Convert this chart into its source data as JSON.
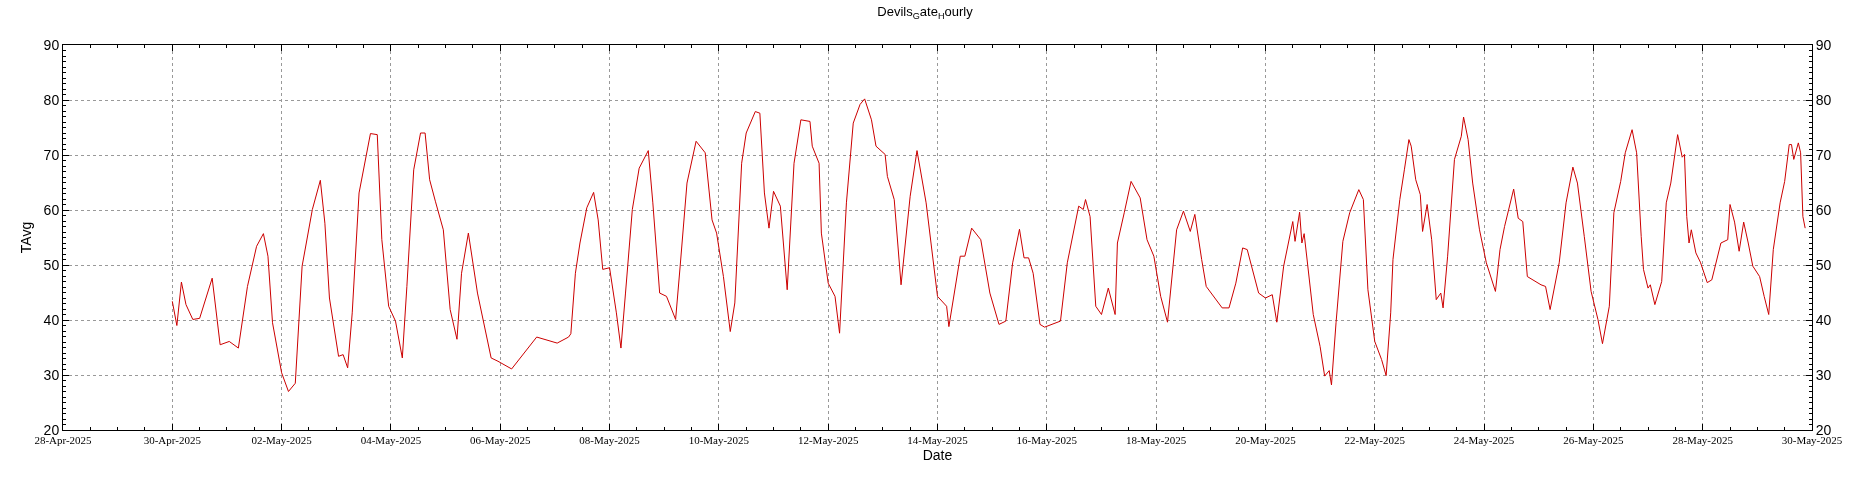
{
  "chart_data": {
    "type": "line",
    "title": "Devils$_{G}$ate$_{H}$ourly",
    "xlabel": "Date",
    "ylabel": "TAvg",
    "x": [
      "2025-04-30T00:00",
      "2025-04-30T02:00",
      "2025-04-30T04:00",
      "2025-04-30T06:00",
      "2025-04-30T09:00",
      "2025-04-30T12:00",
      "2025-04-30T17:30",
      "2025-04-30T21:00",
      "2025-05-01T01:00",
      "2025-05-01T05:00",
      "2025-05-01T09:00",
      "2025-05-01T13:00",
      "2025-05-01T16:00",
      "2025-05-01T18:00",
      "2025-05-01T20:00",
      "2025-05-02T00:00",
      "2025-05-02T03:00",
      "2025-05-02T06:00",
      "2025-05-02T09:00",
      "2025-05-02T13:30",
      "2025-05-02T17:00",
      "2025-05-02T19:00",
      "2025-05-02T21:00",
      "2025-05-03T01:00",
      "2025-05-03T03:00",
      "2025-05-03T05:00",
      "2025-05-03T07:00",
      "2025-05-03T10:00",
      "2025-05-03T15:00",
      "2025-05-03T18:00",
      "2025-05-03T20:00",
      "2025-05-03T23:00",
      "2025-05-04T02:00",
      "2025-05-04T05:00",
      "2025-05-04T07:00",
      "2025-05-04T10:00",
      "2025-05-04T13:00",
      "2025-05-04T15:00",
      "2025-05-04T17:00",
      "2025-05-04T19:30",
      "2025-05-04T23:00",
      "2025-05-05T02:00",
      "2025-05-05T05:00",
      "2025-05-05T07:00",
      "2025-05-05T10:00",
      "2025-05-05T14:00",
      "2025-05-05T20:00",
      "2025-05-05T23:00",
      "2025-05-06T05:00",
      "2025-05-06T16:00",
      "2025-05-07T01:00",
      "2025-05-07T06:00",
      "2025-05-07T07:00",
      "2025-05-07T09:00",
      "2025-05-07T11:00",
      "2025-05-07T14:00",
      "2025-05-07T17:00",
      "2025-05-07T19:00",
      "2025-05-07T21:00",
      "2025-05-08T00:00",
      "2025-05-08T03:00",
      "2025-05-08T05:00",
      "2025-05-08T07:00",
      "2025-05-08T10:00",
      "2025-05-08T13:00",
      "2025-05-08T17:00",
      "2025-05-08T19:00",
      "2025-05-08T22:00",
      "2025-05-09T01:00",
      "2025-05-09T05:00",
      "2025-05-09T07:00",
      "2025-05-09T10:00",
      "2025-05-09T14:00",
      "2025-05-09T18:00",
      "2025-05-09T21:00",
      "2025-05-09T23:00",
      "2025-05-10T02:00",
      "2025-05-10T05:00",
      "2025-05-10T07:00",
      "2025-05-10T10:00",
      "2025-05-10T12:00",
      "2025-05-10T16:00",
      "2025-05-10T18:00",
      "2025-05-10T20:00",
      "2025-05-10T22:00",
      "2025-05-11T00:00",
      "2025-05-11T03:00",
      "2025-05-11T06:00",
      "2025-05-11T09:00",
      "2025-05-11T12:00",
      "2025-05-11T16:00",
      "2025-05-11T17:00",
      "2025-05-11T20:00",
      "2025-05-11T21:00",
      "2025-05-12T00:00",
      "2025-05-12T03:00",
      "2025-05-12T05:00",
      "2025-05-12T08:00",
      "2025-05-12T11:00",
      "2025-05-12T14:00",
      "2025-05-12T16:00",
      "2025-05-12T19:00",
      "2025-05-12T21:00",
      "2025-05-13T01:00",
      "2025-05-13T02:00",
      "2025-05-13T05:00",
      "2025-05-13T08:00",
      "2025-05-13T12:00",
      "2025-05-13T15:00",
      "2025-05-13T19:00",
      "2025-05-14T00:00",
      "2025-05-14T04:00",
      "2025-05-14T05:00",
      "2025-05-14T10:00",
      "2025-05-14T12:00",
      "2025-05-14T15:00",
      "2025-05-14T19:00",
      "2025-05-14T23:00",
      "2025-05-15T03:00",
      "2025-05-15T06:00",
      "2025-05-15T09:00",
      "2025-05-15T12:00",
      "2025-05-15T14:00",
      "2025-05-15T16:00",
      "2025-05-15T18:00",
      "2025-05-15T21:00",
      "2025-05-15T23:00",
      "2025-05-16T06:00",
      "2025-05-16T09:00",
      "2025-05-16T14:00",
      "2025-05-16T16:00",
      "2025-05-16T17:00",
      "2025-05-16T19:00",
      "2025-05-16T21:30",
      "2025-05-17T00:00",
      "2025-05-17T03:00",
      "2025-05-17T06:00",
      "2025-05-17T07:00",
      "2025-05-17T10:00",
      "2025-05-17T13:00",
      "2025-05-17T17:00",
      "2025-05-17T20:00",
      "2025-05-17T23:00",
      "2025-05-18T02:00",
      "2025-05-18T05:00",
      "2025-05-18T09:00",
      "2025-05-18T12:00",
      "2025-05-18T15:00",
      "2025-05-18T17:00",
      "2025-05-18T20:00",
      "2025-05-18T22:00",
      "2025-05-19T05:00",
      "2025-05-19T08:00",
      "2025-05-19T11:00",
      "2025-05-19T14:00",
      "2025-05-19T16:00",
      "2025-05-19T21:00",
      "2025-05-20T00:00",
      "2025-05-20T03:00",
      "2025-05-20T05:00",
      "2025-05-20T08:00",
      "2025-05-20T12:00",
      "2025-05-20T13:00",
      "2025-05-20T15:00",
      "2025-05-20T16:00",
      "2025-05-20T17:00",
      "2025-05-20T21:00",
      "2025-05-21T00:00",
      "2025-05-21T02:00",
      "2025-05-21T04:00",
      "2025-05-21T05:00",
      "2025-05-21T07:00",
      "2025-05-21T10:00",
      "2025-05-21T13:00",
      "2025-05-21T17:00",
      "2025-05-21T19:00",
      "2025-05-21T21:00",
      "2025-05-22T00:00",
      "2025-05-22T03:00",
      "2025-05-22T05:00",
      "2025-05-22T07:00",
      "2025-05-22T08:00",
      "2025-05-22T11:00",
      "2025-05-22T13:00",
      "2025-05-22T15:00",
      "2025-05-22T16:00",
      "2025-05-22T18:00",
      "2025-05-22T20:00",
      "2025-05-22T21:00",
      "2025-05-22T23:00",
      "2025-05-23T01:00",
      "2025-05-23T03:00",
      "2025-05-23T05:00",
      "2025-05-23T06:00",
      "2025-05-23T08:00",
      "2025-05-23T11:00",
      "2025-05-23T14:00",
      "2025-05-23T15:00",
      "2025-05-23T17:00",
      "2025-05-23T19:00",
      "2025-05-23T22:00",
      "2025-05-24T01:00",
      "2025-05-24T05:00",
      "2025-05-24T07:00",
      "2025-05-24T09:00",
      "2025-05-24T13:00",
      "2025-05-24T15:00",
      "2025-05-24T17:00",
      "2025-05-24T19:00",
      "2025-05-25T01:00",
      "2025-05-25T03:00",
      "2025-05-25T05:00",
      "2025-05-25T09:00",
      "2025-05-25T12:00",
      "2025-05-25T15:00",
      "2025-05-25T17:00",
      "2025-05-25T20:00",
      "2025-05-25T23:00",
      "2025-05-26T02:00",
      "2025-05-26T04:00",
      "2025-05-26T07:00",
      "2025-05-26T09:00",
      "2025-05-26T12:00",
      "2025-05-26T14:00",
      "2025-05-26T17:00",
      "2025-05-26T19:00",
      "2025-05-26T21:00",
      "2025-05-26T22:00",
      "2025-05-27T00:00",
      "2025-05-27T01:00",
      "2025-05-27T03:00",
      "2025-05-27T06:00",
      "2025-05-27T08:00",
      "2025-05-27T10:00",
      "2025-05-27T13:00",
      "2025-05-27T15:00",
      "2025-05-27T16:00",
      "2025-05-27T17:00",
      "2025-05-27T18:00",
      "2025-05-27T19:00",
      "2025-05-27T21:00",
      "2025-05-27T23:00",
      "2025-05-28T02:00",
      "2025-05-28T04:00",
      "2025-05-28T08:00",
      "2025-05-28T11:00",
      "2025-05-28T12:00",
      "2025-05-28T14:00",
      "2025-05-28T16:00",
      "2025-05-28T18:00",
      "2025-05-28T20:00",
      "2025-05-28T22:00",
      "2025-05-29T01:00",
      "2025-05-29T03:00",
      "2025-05-29T05:00",
      "2025-05-29T07:00",
      "2025-05-29T10:00",
      "2025-05-29T12:00",
      "2025-05-29T14:00",
      "2025-05-29T15:00",
      "2025-05-29T16:00",
      "2025-05-29T18:00",
      "2025-05-29T19:00",
      "2025-05-29T20:00",
      "2025-05-29T21:00"
    ],
    "series": [
      {
        "color": "#cc0000",
        "values": [
          43.4,
          39.0,
          46.9,
          42.8,
          40.1,
          40.3,
          47.6,
          35.5,
          36.1,
          34.9,
          46.1,
          53.4,
          55.7,
          51.6,
          39.5,
          30.4,
          27.0,
          28.5,
          49.8,
          60.1,
          65.4,
          57.6,
          44.0,
          33.4,
          33.7,
          31.3,
          41.3,
          63.1,
          73.9,
          73.7,
          54.6,
          42.5,
          39.8,
          33.1,
          46.1,
          67.3,
          74.0,
          74.0,
          65.5,
          61.6,
          56.4,
          41.9,
          36.5,
          48.5,
          55.8,
          44.9,
          33.1,
          32.5,
          31.1,
          36.9,
          35.8,
          36.9,
          37.5,
          48.5,
          54.0,
          60.4,
          63.2,
          58.2,
          49.2,
          49.5,
          41.3,
          34.9,
          44.9,
          60.1,
          67.6,
          70.8,
          61.3,
          44.9,
          44.3,
          40.1,
          49.8,
          64.9,
          72.5,
          70.4,
          58.2,
          55.8,
          47.9,
          37.9,
          43.1,
          68.5,
          74.0,
          77.9,
          77.6,
          63.1,
          56.7,
          63.4,
          60.7,
          45.5,
          68.5,
          76.4,
          76.1,
          71.6,
          68.5,
          55.8,
          46.7,
          44.3,
          37.6,
          61.3,
          75.8,
          79.2,
          80.2,
          76.4,
          71.6,
          70.1,
          66.1,
          61.9,
          46.4,
          62.5,
          70.8,
          61.3,
          44.3,
          42.5,
          38.8,
          51.6,
          51.6,
          56.7,
          54.6,
          44.9,
          39.2,
          39.8,
          50.4,
          56.5,
          51.3,
          51.3,
          48.5,
          39.2,
          38.7,
          39.8,
          50.4,
          60.7,
          60.1,
          61.9,
          58.8,
          42.5,
          41.0,
          45.8,
          41.0,
          54.0,
          59.5,
          65.2,
          62.2,
          54.6,
          51.6,
          44.3,
          39.6,
          56.4,
          59.8,
          56.1,
          59.2,
          51.0,
          46.1,
          42.2,
          42.2,
          46.7,
          53.1,
          52.8,
          44.9,
          44.0,
          44.6,
          39.6,
          49.8,
          57.9,
          54.3,
          59.6,
          54.0,
          55.7,
          41.0,
          35.2,
          29.8,
          30.8,
          28.2,
          39.5,
          54.3,
          59.5,
          63.7,
          61.9,
          45.5,
          36.1,
          32.8,
          29.9,
          41.3,
          51.0,
          61.9,
          67.3,
          72.8,
          71.6,
          65.5,
          62.8,
          56.1,
          61.0,
          54.6,
          43.7,
          44.9,
          42.2,
          51.6,
          69.2,
          73.4,
          76.9,
          72.8,
          64.9,
          56.4,
          50.4,
          45.2,
          52.8,
          57.0,
          63.8,
          58.5,
          57.9,
          47.9,
          46.4,
          46.1,
          41.9,
          50.4,
          61.3,
          67.8,
          64.9,
          55.2,
          45.2,
          40.1,
          35.7,
          42.5,
          59.5,
          65.2,
          70.4,
          74.6,
          70.4,
          55.2,
          49.2,
          45.8,
          46.4,
          42.8,
          47.0,
          61.3,
          64.9,
          73.7,
          69.6,
          70.1,
          58.8,
          54.0,
          56.4,
          52.2,
          50.5,
          46.8,
          47.3,
          54.0,
          54.6,
          61.0,
          57.8,
          52.5,
          57.8,
          54.0,
          49.8,
          47.9,
          44.3,
          41.0,
          52.8,
          61.3,
          65.2,
          71.9,
          71.9,
          69.2,
          72.2,
          70.4,
          58.8,
          56.7
        ]
      }
    ],
    "xlim": [
      "2025-04-28",
      "2025-05-30"
    ],
    "xticks": [
      {
        "value": "2025-04-28",
        "label": "28-Apr-2025"
      },
      {
        "value": "2025-04-30",
        "label": "30-Apr-2025"
      },
      {
        "value": "2025-05-02",
        "label": "02-May-2025"
      },
      {
        "value": "2025-05-04",
        "label": "04-May-2025"
      },
      {
        "value": "2025-05-06",
        "label": "06-May-2025"
      },
      {
        "value": "2025-05-08",
        "label": "08-May-2025"
      },
      {
        "value": "2025-05-10",
        "label": "10-May-2025"
      },
      {
        "value": "2025-05-12",
        "label": "12-May-2025"
      },
      {
        "value": "2025-05-14",
        "label": "14-May-2025"
      },
      {
        "value": "2025-05-16",
        "label": "16-May-2025"
      },
      {
        "value": "2025-05-18",
        "label": "18-May-2025"
      },
      {
        "value": "2025-05-20",
        "label": "20-May-2025"
      },
      {
        "value": "2025-05-22",
        "label": "22-May-2025"
      },
      {
        "value": "2025-05-24",
        "label": "24-May-2025"
      },
      {
        "value": "2025-05-26",
        "label": "26-May-2025"
      },
      {
        "value": "2025-05-28",
        "label": "28-May-2025"
      },
      {
        "value": "2025-05-30",
        "label": "30-May-2025"
      }
    ],
    "ylim": [
      20,
      90
    ],
    "yticks": [
      20,
      30,
      40,
      50,
      60,
      70,
      80,
      90
    ],
    "y2lim": [
      20,
      90
    ],
    "y2ticks": [
      20,
      30,
      40,
      50,
      60,
      70,
      80,
      90
    ],
    "grid": true,
    "line_style": "solid"
  }
}
